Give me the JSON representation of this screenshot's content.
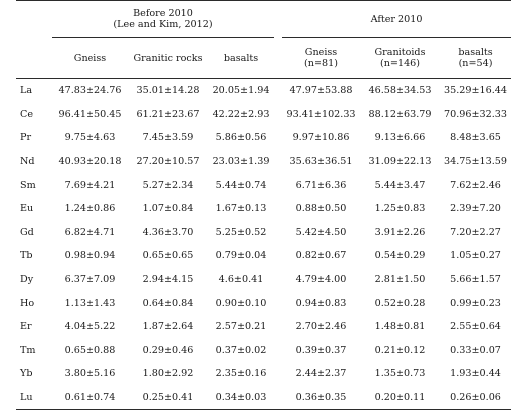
{
  "groups": {
    "before": {
      "title": "Before 2010",
      "subtitle": "(Lee and Kim, 2012)"
    },
    "after": {
      "title": "After 2010"
    }
  },
  "columns": {
    "before": [
      {
        "label": "Gneiss",
        "n": ""
      },
      {
        "label": "Granitic rocks",
        "n": ""
      },
      {
        "label": "basalts",
        "n": ""
      }
    ],
    "after": [
      {
        "label": "Gneiss",
        "n": "(n=81)"
      },
      {
        "label": "Granitoids",
        "n": "(n=146)"
      },
      {
        "label": "basalts",
        "n": "(n=54)"
      }
    ]
  },
  "rows": [
    {
      "element": "La",
      "values": [
        "47.83±24.76",
        "35.01±14.28",
        "20.05±1.94",
        "47.97±53.88",
        "46.58±34.53",
        "35.29±16.44"
      ]
    },
    {
      "element": "Ce",
      "values": [
        "96.41±50.45",
        "61.21±23.67",
        "42.22±2.93",
        "93.41±102.33",
        "88.12±63.79",
        "70.96±32.33"
      ]
    },
    {
      "element": "Pr",
      "values": [
        "9.75±4.63",
        "7.45±3.59",
        "5.86±0.56",
        "9.97±10.86",
        "9.13±6.66",
        "8.48±3.65"
      ]
    },
    {
      "element": "Nd",
      "values": [
        "40.93±20.18",
        "27.20±10.57",
        "23.03±1.39",
        "35.63±36.51",
        "31.09±22.13",
        "34.75±13.59"
      ]
    },
    {
      "element": "Sm",
      "values": [
        "7.69±4.21",
        "5.27±2.34",
        "5.44±0.74",
        "6.71±6.36",
        "5.44±3.47",
        "7.62±2.46"
      ]
    },
    {
      "element": "Eu",
      "values": [
        "1.24±0.86",
        "1.07±0.84",
        "1.67±0.13",
        "0.88±0.50",
        "1.25±0.83",
        "2.39±7.20"
      ]
    },
    {
      "element": "Gd",
      "values": [
        "6.82±4.71",
        "4.36±3.70",
        "5.25±0.52",
        "5.42±4.50",
        "3.91±2.26",
        "7.20±2.27"
      ]
    },
    {
      "element": "Tb",
      "values": [
        "0.98±0.94",
        "0.65±0.65",
        "0.79±0.04",
        "0.82±0.67",
        "0.54±0.29",
        "1.05±0.27"
      ]
    },
    {
      "element": "Dy",
      "values": [
        "6.37±7.09",
        "2.94±4.15",
        "4.6±0.41",
        "4.79±4.00",
        "2.81±1.50",
        "5.66±1.57"
      ]
    },
    {
      "element": "Ho",
      "values": [
        "1.13±1.43",
        "0.64±0.84",
        "0.90±0.10",
        "0.94±0.83",
        "0.52±0.28",
        "0.99±0.23"
      ]
    },
    {
      "element": "Er",
      "values": [
        "4.04±5.22",
        "1.87±2.64",
        "2.57±0.21",
        "2.70±2.46",
        "1.48±0.81",
        "2.55±0.64"
      ]
    },
    {
      "element": "Tm",
      "values": [
        "0.65±0.88",
        "0.29±0.46",
        "0.37±0.02",
        "0.39±0.37",
        "0.21±0.12",
        "0.33±0.07"
      ]
    },
    {
      "element": "Yb",
      "values": [
        "3.80±5.16",
        "1.80±2.92",
        "2.35±0.16",
        "2.44±2.37",
        "1.35±0.73",
        "1.93±0.44"
      ]
    },
    {
      "element": "Lu",
      "values": [
        "0.61±0.74",
        "0.25±0.41",
        "0.34±0.03",
        "0.36±0.35",
        "0.20±0.11",
        "0.26±0.06"
      ]
    }
  ]
}
